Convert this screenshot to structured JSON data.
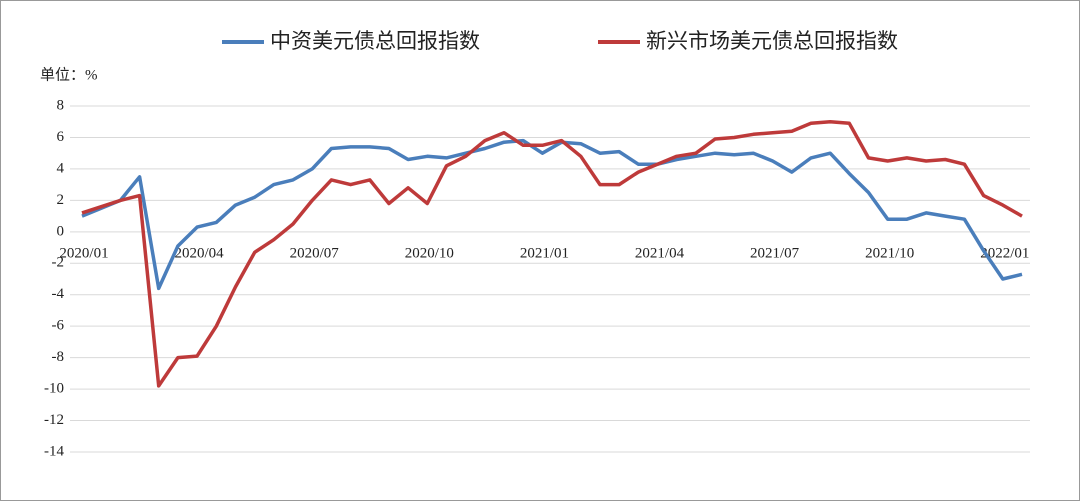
{
  "chart_data": {
    "type": "line",
    "y_axis_label": "单位：%",
    "categories": [
      "2020/01",
      null,
      null,
      null,
      null,
      null,
      "2020/04",
      null,
      null,
      null,
      null,
      null,
      "2020/07",
      null,
      null,
      null,
      null,
      null,
      "2020/10",
      null,
      null,
      null,
      null,
      null,
      "2021/01",
      null,
      null,
      null,
      null,
      null,
      "2021/04",
      null,
      null,
      null,
      null,
      null,
      "2021/07",
      null,
      null,
      null,
      null,
      null,
      "2021/10",
      null,
      null,
      null,
      null,
      null,
      "2022/01",
      null
    ],
    "series": [
      {
        "name": "中资美元债总回报指数",
        "color": "#4a7ebb",
        "values": [
          1.0,
          1.5,
          2.0,
          3.5,
          -3.6,
          -0.9,
          0.3,
          0.6,
          1.7,
          2.2,
          3.0,
          3.3,
          4.0,
          5.3,
          5.4,
          5.4,
          5.3,
          4.6,
          4.8,
          4.7,
          5.0,
          5.3,
          5.7,
          5.8,
          5.0,
          5.7,
          5.6,
          5.0,
          5.1,
          4.3,
          4.3,
          4.6,
          4.8,
          5.0,
          4.9,
          5.0,
          4.5,
          3.8,
          4.7,
          5.0,
          3.7,
          2.5,
          0.8,
          0.8,
          1.2,
          1.0,
          0.8,
          -1.2,
          -3.0,
          -2.7
        ]
      },
      {
        "name": "新兴市场美元债总回报指数",
        "color": "#be3a3a",
        "values": [
          1.2,
          1.6,
          2.0,
          2.3,
          -9.8,
          -8.0,
          -7.9,
          -6.0,
          -3.5,
          -1.3,
          -0.5,
          0.5,
          2.0,
          3.3,
          3.0,
          3.3,
          1.8,
          2.8,
          1.8,
          4.2,
          4.8,
          5.8,
          6.3,
          5.5,
          5.5,
          5.8,
          4.8,
          3.0,
          3.0,
          3.8,
          4.3,
          4.8,
          5.0,
          5.9,
          6.0,
          6.2,
          6.3,
          6.4,
          6.9,
          7.0,
          6.9,
          4.7,
          4.5,
          4.7,
          4.5,
          4.6,
          4.3,
          2.3,
          1.7,
          1.0
        ]
      }
    ],
    "ylim": [
      -14,
      8
    ],
    "yticks": [
      8,
      6,
      4,
      2,
      0,
      -2,
      -4,
      -6,
      -8,
      -10,
      -12,
      -14
    ],
    "grid": true
  }
}
